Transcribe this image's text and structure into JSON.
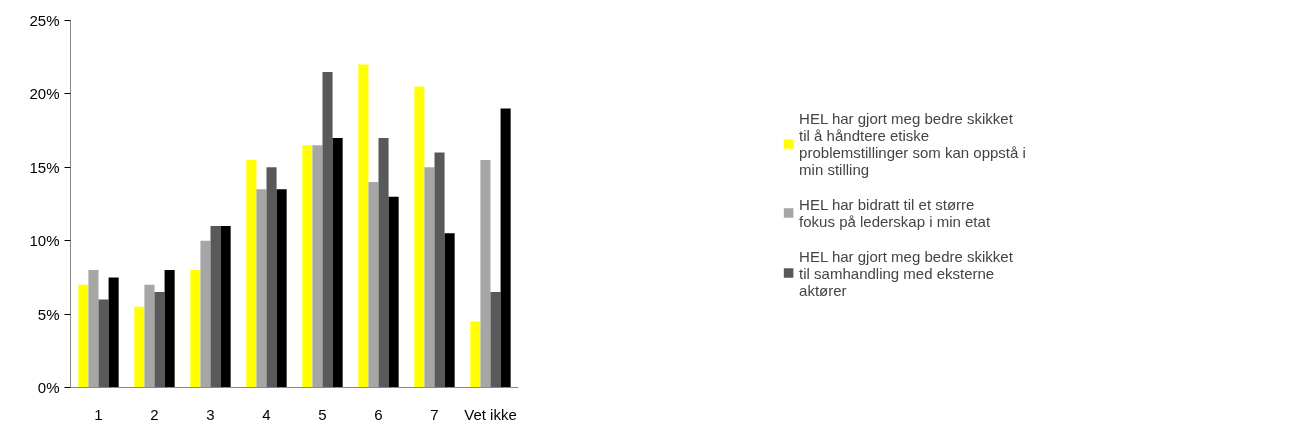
{
  "chart_data": {
    "type": "bar",
    "categories": [
      "1",
      "2",
      "3",
      "4",
      "5",
      "6",
      "7",
      "Vet ikke"
    ],
    "series": [
      {
        "name": "HEL har gjort meg bedre skikket til å håndtere etiske problemstillinger som kan oppstå i min stilling",
        "color": "#ffff00",
        "values": [
          7,
          5.5,
          8,
          15.5,
          16.5,
          22,
          20.5,
          4.5
        ]
      },
      {
        "name": "HEL har bidratt til et større fokus på lederskap i min etat",
        "color": "#a6a6a6",
        "values": [
          8,
          7,
          10,
          13.5,
          16.5,
          14,
          15,
          15.5
        ]
      },
      {
        "name": "HEL har gjort meg bedre skikket til samhandling med eksterne aktører",
        "color": "#595959",
        "values": [
          6,
          6.5,
          11,
          15,
          21.5,
          17,
          16,
          6.5
        ]
      },
      {
        "color": "#000000",
        "values": [
          7.5,
          8,
          11,
          13.5,
          17,
          13,
          10.5,
          19
        ]
      }
    ],
    "ylim": [
      0,
      25
    ],
    "yticks": [
      {
        "value": 0,
        "label": "0%"
      },
      {
        "value": 5,
        "label": "5%"
      },
      {
        "value": 10,
        "label": "10%"
      },
      {
        "value": 15,
        "label": "15%"
      },
      {
        "value": 20,
        "label": "20%"
      },
      {
        "value": 25,
        "label": "25%"
      }
    ],
    "grid": false,
    "legend": "right"
  }
}
